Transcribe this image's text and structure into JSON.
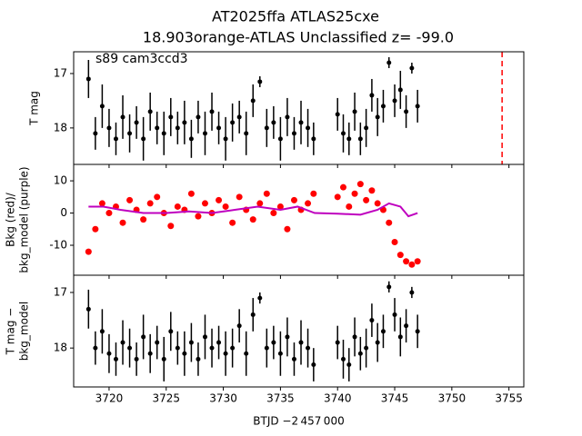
{
  "chart_data": [
    {
      "type": "scatter",
      "title": [
        "AT2025ffa  ATLAS25cxe",
        "18.903orange-ATLAS Unclassified z= -99.0"
      ],
      "annotation": "s89 cam3ccd3",
      "ylabel": [
        "T mag"
      ],
      "xlim": [
        3716.9,
        3756.3
      ],
      "ylim": [
        18.67,
        16.6
      ],
      "yticks": [
        17,
        18
      ],
      "vline": {
        "x": 3754.4,
        "color": "#ff0000"
      },
      "series": [
        {
          "color": "#000000",
          "x": [
            3718.2,
            3718.8,
            3719.4,
            3720.0,
            3720.6,
            3721.2,
            3721.8,
            3722.4,
            3723.0,
            3723.6,
            3724.2,
            3724.8,
            3725.4,
            3726.0,
            3726.6,
            3727.2,
            3727.8,
            3728.4,
            3729.0,
            3729.6,
            3730.2,
            3730.8,
            3731.4,
            3732.0,
            3732.6,
            3733.2,
            3733.8,
            3734.4,
            3735.0,
            3735.6,
            3736.2,
            3736.8,
            3737.4,
            3737.9,
            3740.0,
            3740.5,
            3741.0,
            3741.5,
            3742.0,
            3742.5,
            3743.0,
            3743.5,
            3744.0,
            3744.5,
            3745.0,
            3745.5,
            3746.0,
            3746.5,
            3747.0
          ],
          "values": [
            17.1,
            18.1,
            17.6,
            18.0,
            18.2,
            17.8,
            18.1,
            17.9,
            18.2,
            17.7,
            18.0,
            18.1,
            17.8,
            18.0,
            17.9,
            18.2,
            17.8,
            18.1,
            17.7,
            18.0,
            18.2,
            17.9,
            17.8,
            18.1,
            17.5,
            17.15,
            18.0,
            17.9,
            18.2,
            17.8,
            18.1,
            17.9,
            18.0,
            18.2,
            17.75,
            18.1,
            18.2,
            17.7,
            18.2,
            18.0,
            17.4,
            17.8,
            17.6,
            16.8,
            17.5,
            17.3,
            17.7,
            16.9,
            17.6
          ],
          "errors": [
            0.35,
            0.3,
            0.4,
            0.35,
            0.3,
            0.4,
            0.35,
            0.3,
            0.4,
            0.35,
            0.3,
            0.4,
            0.35,
            0.3,
            0.4,
            0.35,
            0.3,
            0.4,
            0.35,
            0.3,
            0.4,
            0.35,
            0.3,
            0.4,
            0.3,
            0.1,
            0.35,
            0.3,
            0.4,
            0.35,
            0.3,
            0.4,
            0.35,
            0.3,
            0.3,
            0.35,
            0.3,
            0.35,
            0.3,
            0.35,
            0.3,
            0.35,
            0.3,
            0.1,
            0.3,
            0.35,
            0.3,
            0.1,
            0.3
          ]
        }
      ]
    },
    {
      "type": "scatter",
      "ylabel": [
        "Bkg (red)/",
        "bkg_model (purple)"
      ],
      "xlim": [
        3716.9,
        3756.3
      ],
      "ylim": [
        -19.3,
        15.1
      ],
      "yticks": [
        -10,
        0,
        10
      ],
      "series": [
        {
          "color": "#ff0000",
          "x": [
            3718.2,
            3718.8,
            3719.4,
            3720.0,
            3720.6,
            3721.2,
            3721.8,
            3722.4,
            3723.0,
            3723.6,
            3724.2,
            3724.8,
            3725.4,
            3726.0,
            3726.6,
            3727.2,
            3727.8,
            3728.4,
            3729.0,
            3729.6,
            3730.2,
            3730.8,
            3731.4,
            3732.0,
            3732.6,
            3733.2,
            3733.8,
            3734.4,
            3735.0,
            3735.6,
            3736.2,
            3736.8,
            3737.4,
            3737.9,
            3740.0,
            3740.5,
            3741.0,
            3741.5,
            3742.0,
            3742.5,
            3743.0,
            3743.5,
            3744.0,
            3744.5,
            3745.0,
            3745.5,
            3746.0,
            3746.5,
            3747.0
          ],
          "values": [
            -12,
            -5,
            3,
            0,
            2,
            -3,
            4,
            1,
            -2,
            3,
            5,
            0,
            -4,
            2,
            1,
            6,
            -1,
            3,
            0,
            4,
            2,
            -3,
            5,
            1,
            -2,
            3,
            6,
            0,
            2,
            -5,
            4,
            1,
            3,
            6,
            5,
            8,
            2,
            6,
            9,
            4,
            7,
            3,
            1,
            -3,
            -9,
            -13,
            -15,
            -16,
            -15
          ]
        },
        {
          "color": "#bf00bf",
          "line": true,
          "x": [
            3718.2,
            3719.5,
            3721,
            3723,
            3725,
            3727,
            3729,
            3731,
            3733,
            3735,
            3736.5,
            3738,
            3740,
            3742,
            3743.5,
            3744.5,
            3745.5,
            3746.2,
            3747
          ],
          "values": [
            2,
            2,
            1,
            0,
            0,
            0.5,
            0,
            1,
            2,
            1,
            2,
            0,
            -0.2,
            -0.5,
            1,
            3,
            2,
            -1,
            0
          ]
        }
      ]
    },
    {
      "type": "scatter",
      "ylabel": [
        "T mag −",
        "bkg_model"
      ],
      "xlabel": "BTJD −2 457 000",
      "xlim": [
        3716.9,
        3756.3
      ],
      "xticks": [
        3720,
        3725,
        3730,
        3735,
        3740,
        3745,
        3750,
        3755
      ],
      "ylim": [
        18.7,
        16.69
      ],
      "yticks": [
        17,
        18
      ],
      "series": [
        {
          "color": "#000000",
          "x": [
            3718.2,
            3718.8,
            3719.4,
            3720.0,
            3720.6,
            3721.2,
            3721.8,
            3722.4,
            3723.0,
            3723.6,
            3724.2,
            3724.8,
            3725.4,
            3726.0,
            3726.6,
            3727.2,
            3727.8,
            3728.4,
            3729.0,
            3729.6,
            3730.2,
            3730.8,
            3731.4,
            3732.0,
            3732.6,
            3733.2,
            3733.8,
            3734.4,
            3735.0,
            3735.6,
            3736.2,
            3736.8,
            3737.4,
            3737.9,
            3740.0,
            3740.5,
            3741.0,
            3741.5,
            3742.0,
            3742.5,
            3743.0,
            3743.5,
            3744.0,
            3744.5,
            3745.0,
            3745.5,
            3746.0,
            3746.5,
            3747.0
          ],
          "values": [
            17.3,
            18.0,
            17.7,
            18.1,
            18.2,
            17.9,
            18.0,
            18.2,
            17.8,
            18.1,
            17.9,
            18.2,
            17.7,
            18.0,
            18.1,
            17.9,
            18.2,
            17.8,
            18.0,
            17.9,
            18.1,
            18.0,
            17.6,
            18.1,
            17.4,
            17.1,
            18.0,
            17.9,
            18.1,
            17.8,
            18.2,
            17.9,
            18.0,
            18.3,
            17.9,
            18.2,
            18.3,
            17.8,
            18.1,
            18.0,
            17.5,
            17.9,
            17.7,
            16.9,
            17.4,
            17.8,
            17.6,
            17.0,
            17.7
          ],
          "errors": [
            0.35,
            0.3,
            0.4,
            0.35,
            0.3,
            0.4,
            0.35,
            0.3,
            0.4,
            0.35,
            0.3,
            0.4,
            0.35,
            0.3,
            0.4,
            0.35,
            0.3,
            0.4,
            0.35,
            0.3,
            0.4,
            0.35,
            0.3,
            0.4,
            0.3,
            0.1,
            0.35,
            0.3,
            0.4,
            0.35,
            0.3,
            0.4,
            0.35,
            0.3,
            0.3,
            0.35,
            0.3,
            0.35,
            0.3,
            0.35,
            0.3,
            0.35,
            0.3,
            0.1,
            0.3,
            0.35,
            0.3,
            0.1,
            0.3
          ]
        }
      ]
    }
  ]
}
